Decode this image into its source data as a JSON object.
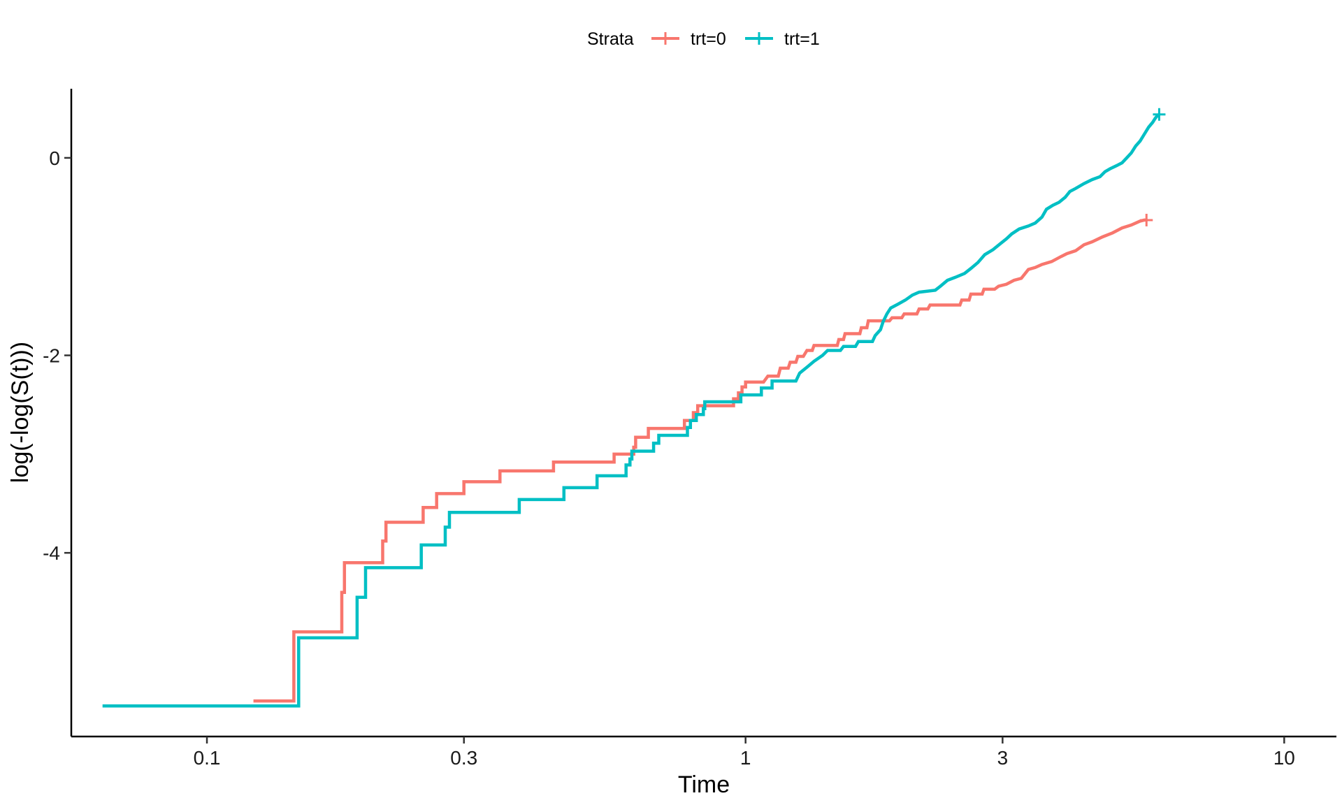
{
  "chart_data": {
    "type": "line",
    "step": true,
    "xlabel": "Time",
    "ylabel": "log(-log(S(t)))",
    "x_scale": "log",
    "xlim": [
      0.056,
      12.5
    ],
    "ylim": [
      -5.86,
      0.7
    ],
    "x_ticks": [
      {
        "value": 0.1,
        "label": "0.1"
      },
      {
        "value": 0.3,
        "label": "0.3"
      },
      {
        "value": 1,
        "label": "1"
      },
      {
        "value": 3,
        "label": "3"
      },
      {
        "value": 10,
        "label": "10"
      }
    ],
    "y_ticks": [
      {
        "value": 0,
        "label": "0"
      },
      {
        "value": -2,
        "label": "-2"
      },
      {
        "value": -4,
        "label": "-4"
      }
    ],
    "grid": false,
    "legend": {
      "position": "top",
      "title": "Strata",
      "entries": [
        {
          "label": "trt=0",
          "color": "#F8766D"
        },
        {
          "label": "trt=1",
          "color": "#00BFC4"
        }
      ]
    },
    "series": [
      {
        "name": "trt=0",
        "color": "#F8766D",
        "points": [
          [
            0.122,
            -5.5
          ],
          [
            0.145,
            -5.5
          ],
          [
            0.145,
            -4.8
          ],
          [
            0.178,
            -4.8
          ],
          [
            0.178,
            -4.4
          ],
          [
            0.18,
            -4.4
          ],
          [
            0.18,
            -4.1
          ],
          [
            0.212,
            -4.1
          ],
          [
            0.212,
            -3.88
          ],
          [
            0.215,
            -3.88
          ],
          [
            0.215,
            -3.69
          ],
          [
            0.252,
            -3.69
          ],
          [
            0.252,
            -3.54
          ],
          [
            0.267,
            -3.54
          ],
          [
            0.267,
            -3.4
          ],
          [
            0.3,
            -3.4
          ],
          [
            0.3,
            -3.28
          ],
          [
            0.35,
            -3.28
          ],
          [
            0.35,
            -3.17
          ],
          [
            0.44,
            -3.17
          ],
          [
            0.44,
            -3.08
          ],
          [
            0.57,
            -3.08
          ],
          [
            0.57,
            -3.0
          ],
          [
            0.62,
            -3.0
          ],
          [
            0.62,
            -2.93
          ],
          [
            0.625,
            -2.93
          ],
          [
            0.625,
            -2.83
          ],
          [
            0.66,
            -2.83
          ],
          [
            0.66,
            -2.74
          ],
          [
            0.77,
            -2.74
          ],
          [
            0.77,
            -2.66
          ],
          [
            0.8,
            -2.66
          ],
          [
            0.8,
            -2.58
          ],
          [
            0.815,
            -2.58
          ],
          [
            0.815,
            -2.51
          ],
          [
            0.95,
            -2.51
          ],
          [
            0.95,
            -2.44
          ],
          [
            0.97,
            -2.44
          ],
          [
            0.97,
            -2.38
          ],
          [
            0.985,
            -2.38
          ],
          [
            0.985,
            -2.32
          ],
          [
            1.0,
            -2.32
          ],
          [
            1.0,
            -2.27
          ],
          [
            1.08,
            -2.27
          ],
          [
            1.1,
            -2.21
          ],
          [
            1.15,
            -2.21
          ],
          [
            1.16,
            -2.13
          ],
          [
            1.2,
            -2.13
          ],
          [
            1.21,
            -2.07
          ],
          [
            1.24,
            -2.07
          ],
          [
            1.25,
            -2.01
          ],
          [
            1.28,
            -2.01
          ],
          [
            1.3,
            -1.95
          ],
          [
            1.33,
            -1.95
          ],
          [
            1.34,
            -1.9
          ],
          [
            1.48,
            -1.9
          ],
          [
            1.49,
            -1.84
          ],
          [
            1.52,
            -1.84
          ],
          [
            1.53,
            -1.78
          ],
          [
            1.63,
            -1.78
          ],
          [
            1.64,
            -1.72
          ],
          [
            1.68,
            -1.72
          ],
          [
            1.69,
            -1.65
          ],
          [
            1.85,
            -1.65
          ],
          [
            1.87,
            -1.62
          ],
          [
            1.95,
            -1.62
          ],
          [
            1.97,
            -1.58
          ],
          [
            2.08,
            -1.58
          ],
          [
            2.1,
            -1.53
          ],
          [
            2.18,
            -1.53
          ],
          [
            2.2,
            -1.49
          ],
          [
            2.5,
            -1.49
          ],
          [
            2.52,
            -1.44
          ],
          [
            2.6,
            -1.44
          ],
          [
            2.62,
            -1.38
          ],
          [
            2.75,
            -1.38
          ],
          [
            2.77,
            -1.33
          ],
          [
            2.9,
            -1.33
          ],
          [
            2.95,
            -1.3
          ],
          [
            3.05,
            -1.28
          ],
          [
            3.15,
            -1.24
          ],
          [
            3.25,
            -1.22
          ],
          [
            3.35,
            -1.13
          ],
          [
            3.45,
            -1.11
          ],
          [
            3.55,
            -1.08
          ],
          [
            3.7,
            -1.05
          ],
          [
            3.85,
            -1.0
          ],
          [
            3.95,
            -0.97
          ],
          [
            4.1,
            -0.94
          ],
          [
            4.25,
            -0.88
          ],
          [
            4.4,
            -0.85
          ],
          [
            4.6,
            -0.8
          ],
          [
            4.8,
            -0.76
          ],
          [
            5.0,
            -0.71
          ],
          [
            5.2,
            -0.68
          ],
          [
            5.4,
            -0.64
          ],
          [
            5.5,
            -0.63
          ],
          [
            5.55,
            -0.63
          ]
        ],
        "censor_mark": [
          5.55,
          -0.63
        ]
      },
      {
        "name": "trt=1",
        "color": "#00BFC4",
        "points": [
          [
            0.064,
            -5.55
          ],
          [
            0.148,
            -5.55
          ],
          [
            0.148,
            -4.86
          ],
          [
            0.19,
            -4.86
          ],
          [
            0.19,
            -4.45
          ],
          [
            0.197,
            -4.45
          ],
          [
            0.197,
            -4.15
          ],
          [
            0.25,
            -4.15
          ],
          [
            0.25,
            -3.92
          ],
          [
            0.277,
            -3.92
          ],
          [
            0.277,
            -3.74
          ],
          [
            0.282,
            -3.74
          ],
          [
            0.282,
            -3.59
          ],
          [
            0.38,
            -3.59
          ],
          [
            0.38,
            -3.46
          ],
          [
            0.46,
            -3.46
          ],
          [
            0.46,
            -3.34
          ],
          [
            0.53,
            -3.34
          ],
          [
            0.53,
            -3.22
          ],
          [
            0.6,
            -3.22
          ],
          [
            0.6,
            -3.11
          ],
          [
            0.61,
            -3.11
          ],
          [
            0.61,
            -3.05
          ],
          [
            0.615,
            -3.05
          ],
          [
            0.615,
            -2.97
          ],
          [
            0.675,
            -2.97
          ],
          [
            0.675,
            -2.89
          ],
          [
            0.69,
            -2.89
          ],
          [
            0.69,
            -2.81
          ],
          [
            0.78,
            -2.81
          ],
          [
            0.78,
            -2.73
          ],
          [
            0.79,
            -2.73
          ],
          [
            0.79,
            -2.66
          ],
          [
            0.81,
            -2.66
          ],
          [
            0.81,
            -2.6
          ],
          [
            0.835,
            -2.6
          ],
          [
            0.835,
            -2.54
          ],
          [
            0.84,
            -2.54
          ],
          [
            0.84,
            -2.47
          ],
          [
            0.98,
            -2.47
          ],
          [
            0.98,
            -2.4
          ],
          [
            1.07,
            -2.4
          ],
          [
            1.07,
            -2.33
          ],
          [
            1.12,
            -2.33
          ],
          [
            1.12,
            -2.26
          ],
          [
            1.24,
            -2.26
          ],
          [
            1.26,
            -2.18
          ],
          [
            1.3,
            -2.12
          ],
          [
            1.34,
            -2.06
          ],
          [
            1.39,
            -2.0
          ],
          [
            1.42,
            -1.95
          ],
          [
            1.5,
            -1.95
          ],
          [
            1.52,
            -1.91
          ],
          [
            1.6,
            -1.91
          ],
          [
            1.62,
            -1.86
          ],
          [
            1.72,
            -1.86
          ],
          [
            1.74,
            -1.8
          ],
          [
            1.78,
            -1.74
          ],
          [
            1.8,
            -1.66
          ],
          [
            1.83,
            -1.58
          ],
          [
            1.86,
            -1.52
          ],
          [
            1.92,
            -1.48
          ],
          [
            1.98,
            -1.44
          ],
          [
            2.04,
            -1.39
          ],
          [
            2.1,
            -1.36
          ],
          [
            2.25,
            -1.34
          ],
          [
            2.3,
            -1.3
          ],
          [
            2.37,
            -1.24
          ],
          [
            2.45,
            -1.21
          ],
          [
            2.55,
            -1.17
          ],
          [
            2.62,
            -1.12
          ],
          [
            2.7,
            -1.06
          ],
          [
            2.78,
            -0.98
          ],
          [
            2.88,
            -0.93
          ],
          [
            2.97,
            -0.87
          ],
          [
            3.05,
            -0.82
          ],
          [
            3.12,
            -0.77
          ],
          [
            3.22,
            -0.72
          ],
          [
            3.35,
            -0.69
          ],
          [
            3.45,
            -0.66
          ],
          [
            3.55,
            -0.6
          ],
          [
            3.62,
            -0.52
          ],
          [
            3.72,
            -0.48
          ],
          [
            3.82,
            -0.45
          ],
          [
            3.92,
            -0.4
          ],
          [
            4.0,
            -0.34
          ],
          [
            4.1,
            -0.31
          ],
          [
            4.25,
            -0.26
          ],
          [
            4.4,
            -0.22
          ],
          [
            4.55,
            -0.19
          ],
          [
            4.65,
            -0.14
          ],
          [
            4.75,
            -0.11
          ],
          [
            4.88,
            -0.08
          ],
          [
            5.0,
            -0.05
          ],
          [
            5.1,
            0.0
          ],
          [
            5.2,
            0.05
          ],
          [
            5.3,
            0.12
          ],
          [
            5.4,
            0.17
          ],
          [
            5.5,
            0.24
          ],
          [
            5.6,
            0.31
          ],
          [
            5.7,
            0.36
          ],
          [
            5.76,
            0.4
          ],
          [
            5.8,
            0.42
          ],
          [
            5.86,
            0.44
          ]
        ],
        "censor_mark": [
          5.86,
          0.44
        ]
      }
    ]
  }
}
